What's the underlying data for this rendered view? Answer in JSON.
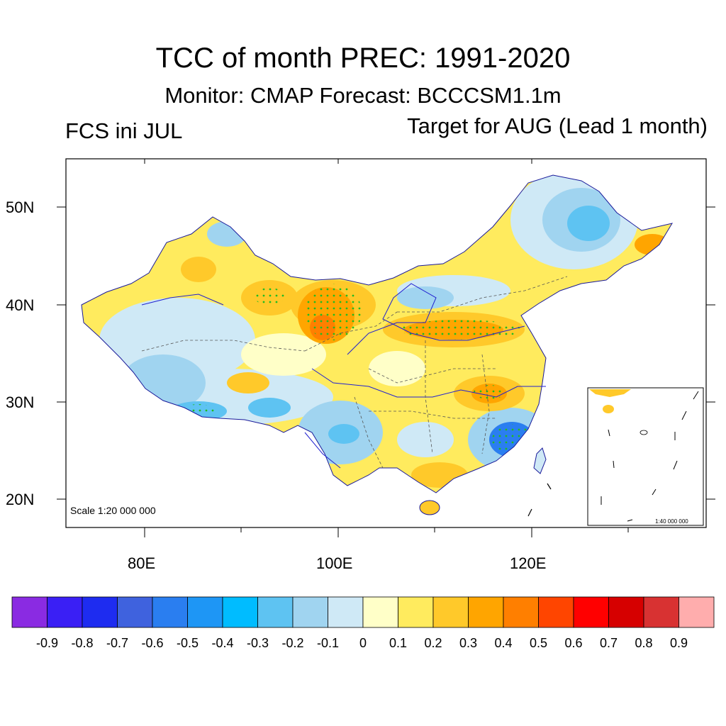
{
  "title": "TCC of month PREC: 1991-2020",
  "subtitle": "Monitor: CMAP   Forecast: BCCCSM1.1m",
  "left_note": "FCS ini JUL",
  "right_note": "Target for AUG (Lead 1 month)",
  "scale_main": "Scale 1:20 000 000",
  "scale_inset": "1:40 000 000",
  "lat_labels": [
    "50N",
    "40N",
    "30N",
    "20N"
  ],
  "lon_labels": [
    "80E",
    "100E",
    "120E"
  ],
  "colorbar": {
    "colors": [
      "#8a2be2",
      "#3a1ff5",
      "#1e2cf0",
      "#3f62de",
      "#2a7ef0",
      "#1e96f5",
      "#00bcff",
      "#5ec3f2",
      "#a0d4f0",
      "#cfe9f6",
      "#ffffc8",
      "#ffeb5e",
      "#ffc92a",
      "#ffa500",
      "#ff7f00",
      "#ff4500",
      "#ff0000",
      "#d60000",
      "#d83232",
      "#ffadad"
    ],
    "labels": [
      "-0.9",
      "-0.8",
      "-0.7",
      "-0.6",
      "-0.5",
      "-0.4",
      "-0.3",
      "-0.2",
      "-0.1",
      "0",
      "0.1",
      "0.2",
      "0.3",
      "0.4",
      "0.5",
      "0.6",
      "0.7",
      "0.8",
      "0.9"
    ]
  },
  "map_colors": {
    "land_base": "#ffeb5e",
    "light_blue": "#cfe9f6",
    "mid_blue": "#a0d4f0",
    "blue": "#5ec3f2",
    "deep_blue": "#2a7ef0",
    "light_yellow": "#ffffc8",
    "yellow": "#ffeb5e",
    "gold": "#ffc92a",
    "orange": "#ffa500",
    "dark_orange": "#ff7f00",
    "river": "#2020d0",
    "stipple": "#22bb22"
  }
}
